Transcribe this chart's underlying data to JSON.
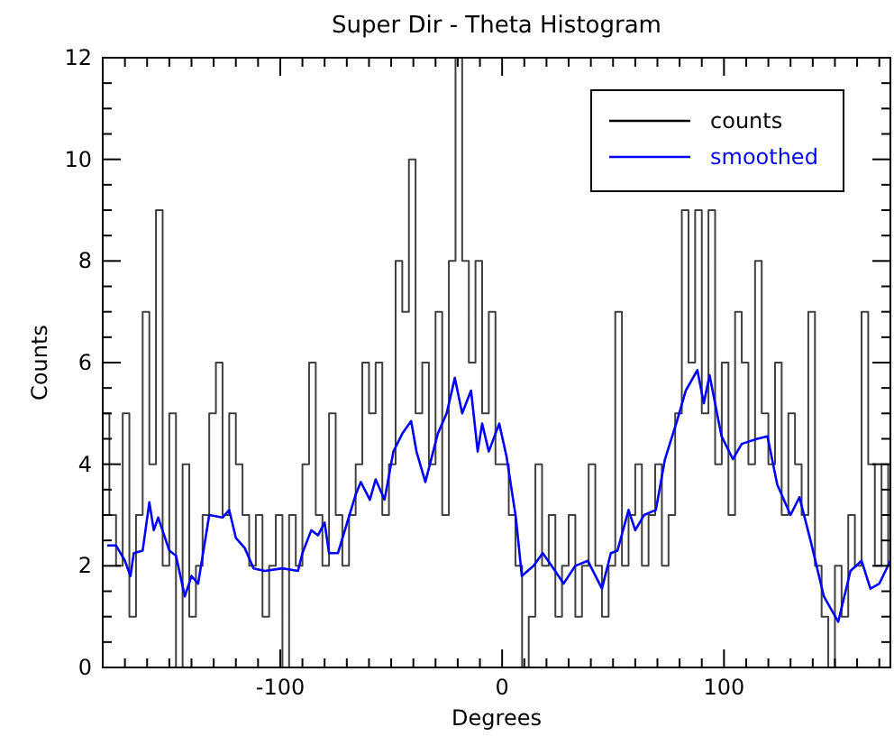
{
  "chart_data": {
    "type": "step",
    "title": "Super Dir - Theta Histogram",
    "xlabel": "Degrees",
    "ylabel": "Counts",
    "xlim": [
      -180,
      175
    ],
    "ylim": [
      0,
      12
    ],
    "xticks": [
      {
        "value": -180,
        "label": null
      },
      {
        "value": -170,
        "label": null
      },
      {
        "value": -160,
        "label": null
      },
      {
        "value": -150,
        "label": null
      },
      {
        "value": -140,
        "label": null
      },
      {
        "value": -130,
        "label": null
      },
      {
        "value": -120,
        "label": null
      },
      {
        "value": -110,
        "label": null
      },
      -100,
      {
        "value": -90,
        "label": null
      },
      {
        "value": -80,
        "label": null
      },
      {
        "value": -70,
        "label": null
      },
      {
        "value": -60,
        "label": null
      },
      {
        "value": -50,
        "label": null
      },
      {
        "value": -40,
        "label": null
      },
      {
        "value": -30,
        "label": null
      },
      {
        "value": -20,
        "label": null
      },
      {
        "value": -10,
        "label": null
      },
      0,
      {
        "value": 10,
        "label": null
      },
      {
        "value": 20,
        "label": null
      },
      {
        "value": 30,
        "label": null
      },
      {
        "value": 40,
        "label": null
      },
      {
        "value": 50,
        "label": null
      },
      {
        "value": 60,
        "label": null
      },
      {
        "value": 70,
        "label": null
      },
      {
        "value": 80,
        "label": null
      },
      {
        "value": 90,
        "label": null
      },
      100,
      {
        "value": 110,
        "label": null
      },
      {
        "value": 120,
        "label": null
      },
      {
        "value": 130,
        "label": null
      },
      {
        "value": 140,
        "label": null
      },
      {
        "value": 150,
        "label": null
      },
      {
        "value": 160,
        "label": null
      },
      {
        "value": 170,
        "label": null
      }
    ],
    "yticks": [
      0,
      {
        "value": 0.5,
        "label": null
      },
      {
        "value": 1,
        "label": null
      },
      {
        "value": 1.5,
        "label": null
      },
      2,
      {
        "value": 2.5,
        "label": null
      },
      {
        "value": 3,
        "label": null
      },
      {
        "value": 3.5,
        "label": null
      },
      4,
      {
        "value": 4.5,
        "label": null
      },
      {
        "value": 5,
        "label": null
      },
      {
        "value": 5.5,
        "label": null
      },
      6,
      {
        "value": 6.5,
        "label": null
      },
      {
        "value": 7,
        "label": null
      },
      {
        "value": 7.5,
        "label": null
      },
      8,
      {
        "value": 8.5,
        "label": null
      },
      {
        "value": 9,
        "label": null
      },
      {
        "value": 9.5,
        "label": null
      },
      10,
      {
        "value": 10.5,
        "label": null
      },
      {
        "value": 11,
        "label": null
      },
      {
        "value": 11.5,
        "label": null
      },
      12
    ],
    "grid": false,
    "legend": "top right",
    "series": [
      {
        "name": "counts",
        "color": "#000000",
        "x": [
          -180,
          -177,
          -174,
          -171,
          -168,
          -165,
          -162,
          -159,
          -156,
          -153,
          -150,
          -147,
          -144,
          -141,
          -138,
          -135,
          -132,
          -129,
          -126,
          -123,
          -120,
          -117,
          -114,
          -111,
          -108,
          -105,
          -102,
          -99,
          -96,
          -93,
          -90,
          -87,
          -84,
          -81,
          -78,
          -75,
          -72,
          -69,
          -66,
          -63,
          -60,
          -57,
          -54,
          -51,
          -48,
          -45,
          -42,
          -39,
          -36,
          -33,
          -30,
          -27,
          -24,
          -21,
          -18,
          -15,
          -12,
          -9,
          -6,
          -3,
          0,
          3,
          6,
          9,
          12,
          15,
          18,
          21,
          24,
          27,
          30,
          33,
          36,
          39,
          42,
          45,
          48,
          51,
          54,
          57,
          60,
          63,
          66,
          69,
          72,
          75,
          78,
          81,
          84,
          87,
          90,
          93,
          96,
          99,
          102,
          105,
          108,
          111,
          114,
          117,
          120,
          123,
          126,
          129,
          132,
          135,
          138,
          141,
          144,
          147,
          150,
          153,
          156,
          159,
          162,
          165,
          168,
          171,
          174
        ],
        "values": [
          5,
          3,
          2,
          5,
          1,
          3,
          7,
          4,
          9,
          2,
          5,
          0,
          4,
          1,
          2,
          3,
          5,
          6,
          3,
          5,
          4,
          3,
          2,
          3,
          1,
          2,
          3,
          0,
          3,
          2,
          4,
          6,
          3,
          2,
          5,
          3,
          2,
          3,
          4,
          6,
          5,
          6,
          3,
          4,
          8,
          7,
          10,
          5,
          6,
          4,
          7,
          3,
          8,
          12,
          8,
          6,
          8,
          5,
          7,
          4,
          4,
          3,
          2,
          0,
          1,
          4,
          2,
          3,
          1,
          2,
          3,
          1,
          2,
          4,
          2,
          1,
          2,
          7,
          2,
          3,
          4,
          2,
          3,
          4,
          2,
          3,
          5,
          9,
          6,
          9,
          5,
          9,
          4,
          6,
          3,
          7,
          6,
          4,
          8,
          5,
          4,
          6,
          3,
          5,
          4,
          3,
          7,
          2,
          1,
          0,
          2,
          1,
          3,
          2,
          7,
          4,
          2,
          4,
          2
        ]
      },
      {
        "name": "smoothed",
        "type": "line",
        "color": "#0000ff",
        "x": [
          -178,
          -174,
          -170,
          -167.5,
          -166,
          -162,
          -159,
          -157,
          -155,
          -150,
          -147,
          -143,
          -140,
          -137,
          -132,
          -126,
          -123,
          -120,
          -116,
          -112,
          -107,
          -99,
          -92,
          -90,
          -86,
          -83,
          -80,
          -78,
          -74,
          -66,
          -63.7,
          -59.6,
          -57,
          -53,
          -49,
          -45,
          -41,
          -38.6,
          -34.6,
          -29,
          -25,
          -21.3,
          -18,
          -14,
          -11,
          -9,
          -6,
          -1.3,
          2,
          6.2,
          8.9,
          14.2,
          18.3,
          22.3,
          27.7,
          33,
          38.6,
          45,
          49,
          52,
          57,
          60,
          64,
          69.3,
          73.4,
          78.8,
          82.8,
          88,
          90.9,
          93.5,
          98.9,
          104,
          108,
          115,
          119.6,
          124,
          130,
          134,
          139,
          145,
          151.5,
          157,
          162,
          166,
          170,
          175
        ],
        "values": [
          2.4,
          2.4,
          2.1,
          1.8,
          2.25,
          2.3,
          3.25,
          2.7,
          2.95,
          2.3,
          2.2,
          1.4,
          1.8,
          1.65,
          3.0,
          2.95,
          3.1,
          2.55,
          2.35,
          1.95,
          1.9,
          1.95,
          1.9,
          2.25,
          2.7,
          2.6,
          2.85,
          2.25,
          2.25,
          3.4,
          3.65,
          3.3,
          3.7,
          3.3,
          4.25,
          4.6,
          4.85,
          4.25,
          3.65,
          4.6,
          5.0,
          5.7,
          5.0,
          5.45,
          4.25,
          4.8,
          4.25,
          4.8,
          4.15,
          2.95,
          1.8,
          2.0,
          2.25,
          2.0,
          1.65,
          2.0,
          2.1,
          1.55,
          2.25,
          2.3,
          3.1,
          2.7,
          3.0,
          3.1,
          4.1,
          4.85,
          5.45,
          5.85,
          5.2,
          5.75,
          4.55,
          4.1,
          4.4,
          4.5,
          4.55,
          3.6,
          3.0,
          3.35,
          2.5,
          1.4,
          0.9,
          1.9,
          2.1,
          1.55,
          1.65,
          2.1
        ]
      }
    ]
  }
}
